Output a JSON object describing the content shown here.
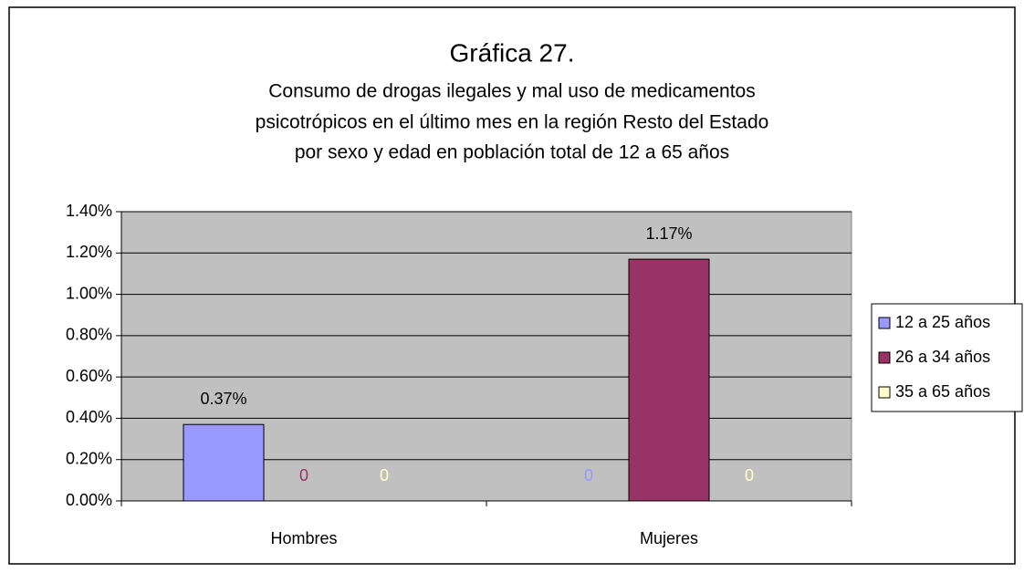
{
  "chart_data": {
    "type": "bar",
    "title": "Gráfica 27.",
    "subtitle": [
      "Consumo de drogas ilegales y mal uso de medicamentos",
      "psicotrópicos en el último mes en la región Resto del Estado",
      "por sexo y edad en población total de 12 a 65 años"
    ],
    "categories": [
      "Hombres",
      "Mujeres"
    ],
    "series": [
      {
        "name": "12 a 25 años",
        "color": "#9999ff",
        "values": [
          0.37,
          0
        ],
        "value_labels": [
          "0.37%",
          "0"
        ]
      },
      {
        "name": "26 a 34 años",
        "color": "#993366",
        "values": [
          0,
          1.17
        ],
        "value_labels": [
          "0",
          "1.17%"
        ]
      },
      {
        "name": "35 a 65 años",
        "color": "#ffffcc",
        "values": [
          0,
          0
        ],
        "value_labels": [
          "0",
          "0"
        ]
      }
    ],
    "ylim": [
      0,
      1.4
    ],
    "yticks": [
      {
        "value": 0,
        "label": "0.00%"
      },
      {
        "value": 0.2,
        "label": "0.20%"
      },
      {
        "value": 0.4,
        "label": "0.40%"
      },
      {
        "value": 0.6,
        "label": "0.60%"
      },
      {
        "value": 0.8,
        "label": "0.80%"
      },
      {
        "value": 1.0,
        "label": "1.00%"
      },
      {
        "value": 1.2,
        "label": "1.20%"
      },
      {
        "value": 1.4,
        "label": "1.40%"
      }
    ],
    "grid": true,
    "plot_background": "#c0c0c0",
    "legend": "right"
  }
}
